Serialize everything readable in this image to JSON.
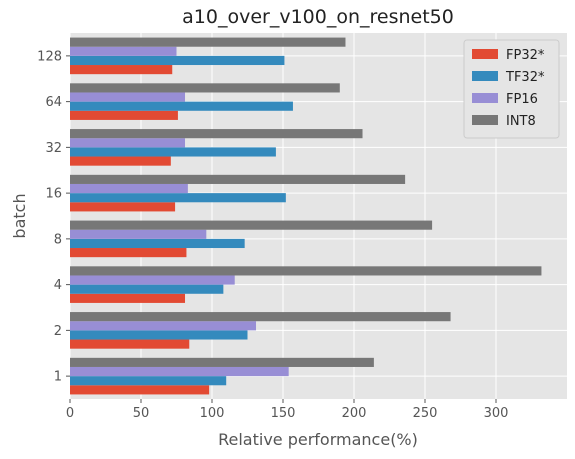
{
  "chart_data": {
    "type": "bar",
    "orientation": "horizontal",
    "title": "a10_over_v100_on_resnet50",
    "xlabel": "Relative performance(%)",
    "ylabel": "batch",
    "categories": [
      "1",
      "2",
      "4",
      "8",
      "16",
      "32",
      "64",
      "128"
    ],
    "xlim": [
      0,
      350
    ],
    "xticks": [
      0,
      50,
      100,
      150,
      200,
      250,
      300
    ],
    "grid": true,
    "legend_position": "top-right",
    "series": [
      {
        "name": "FP32*",
        "color": "#E24A33",
        "values": [
          98,
          84,
          81,
          82,
          74,
          71,
          76,
          72
        ]
      },
      {
        "name": "TF32*",
        "color": "#348ABD",
        "values": [
          110,
          125,
          108,
          123,
          152,
          145,
          157,
          151
        ]
      },
      {
        "name": "FP16",
        "color": "#988ED5",
        "values": [
          154,
          131,
          116,
          96,
          83,
          81,
          81,
          75
        ]
      },
      {
        "name": "INT8",
        "color": "#777777",
        "values": [
          214,
          268,
          332,
          255,
          236,
          206,
          190,
          194
        ]
      }
    ]
  }
}
